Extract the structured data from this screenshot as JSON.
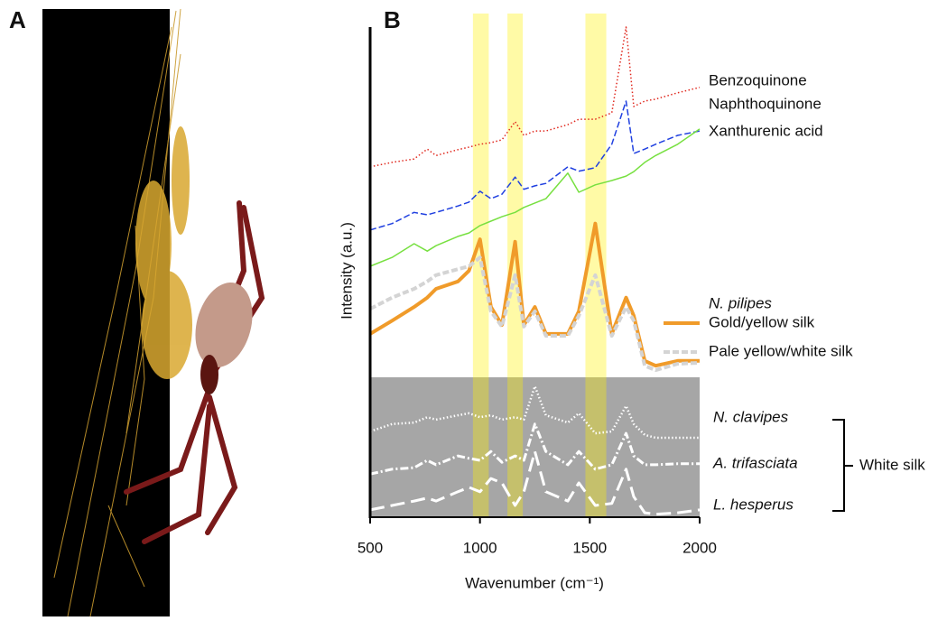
{
  "panel_a": {
    "label": "A"
  },
  "chart_data": {
    "type": "line",
    "label": "B",
    "xlabel": "Wavenumber (cm⁻¹)",
    "ylabel": "Intensity (a.u.)",
    "xlim": [
      500,
      2000
    ],
    "xticks": [
      500,
      1000,
      1500,
      2000
    ],
    "ylim": [
      0,
      100
    ],
    "highlight_bands": [
      [
        968,
        1040
      ],
      [
        1125,
        1195
      ],
      [
        1480,
        1575
      ]
    ],
    "legend_title": "N. pilipes",
    "bracket_label": "White silk",
    "x": [
      500,
      600,
      700,
      760,
      800,
      900,
      950,
      1000,
      1050,
      1100,
      1160,
      1200,
      1250,
      1300,
      1400,
      1450,
      1525,
      1600,
      1665,
      1700,
      1750,
      1800,
      1900,
      2000
    ],
    "series": [
      {
        "name": "Benzoquinone",
        "color": "#e0281e",
        "dash": "dotted",
        "values": [
          71.5,
          72.4,
          73.1,
          75.1,
          73.8,
          75.0,
          75.5,
          76.1,
          76.4,
          77.0,
          80.7,
          77.9,
          78.8,
          78.8,
          80.1,
          81.2,
          81.2,
          82.5,
          100,
          83.8,
          84.9,
          85.3,
          86.6,
          87.7
        ]
      },
      {
        "name": "Naphthoquinone",
        "color": "#2040e0",
        "dash": "dashed",
        "values": [
          58.6,
          59.9,
          62.2,
          61.7,
          62.2,
          63.5,
          64.3,
          66.5,
          65.0,
          65.9,
          69.4,
          66.9,
          67.6,
          68.1,
          71.5,
          70.6,
          71.3,
          76.1,
          84.9,
          74.2,
          75.1,
          76.1,
          77.9,
          78.8
        ]
      },
      {
        "name": "Xanthurenic acid",
        "color": "#77e040",
        "dash": "solid",
        "values": [
          51.2,
          53.0,
          55.8,
          54.3,
          55.4,
          57.3,
          58.0,
          59.5,
          60.4,
          61.3,
          62.2,
          63.2,
          64.1,
          65.0,
          70.2,
          66.3,
          67.8,
          68.7,
          69.6,
          70.5,
          72.4,
          73.8,
          76.1,
          79.2
        ]
      },
      {
        "name": "Gold/yellow silk",
        "color": "#f09b2a",
        "dash": "solid",
        "width": 4,
        "values": [
          37.4,
          40.1,
          42.9,
          44.8,
          46.6,
          48.1,
          50.3,
          56.7,
          42.9,
          39.2,
          56.2,
          39.2,
          42.9,
          37.4,
          37.4,
          42.0,
          59.9,
          37.4,
          44.8,
          41.1,
          31.9,
          30.9,
          31.9,
          31.9
        ]
      },
      {
        "name": "Pale yellow/white silk",
        "color": "#d4d4d4",
        "dash": "dashed",
        "width": 4,
        "values": [
          42.5,
          44.8,
          46.6,
          48.1,
          49.4,
          50.6,
          51.2,
          53.0,
          42.0,
          38.9,
          49.4,
          38.9,
          42.0,
          37.0,
          37.0,
          41.1,
          49.4,
          37.0,
          42.9,
          40.1,
          30.9,
          30.0,
          31.3,
          31.5
        ]
      },
      {
        "name": "N. clavipes",
        "color": "#ffffff",
        "dash": "dotted",
        "width": 2.5,
        "values": [
          17.5,
          19.0,
          19.3,
          20.4,
          19.9,
          20.8,
          21.2,
          20.4,
          20.8,
          19.9,
          20.4,
          19.9,
          26.7,
          20.8,
          19.3,
          21.2,
          17.1,
          17.5,
          22.7,
          19.0,
          16.8,
          16.2,
          16.2,
          16.2
        ]
      },
      {
        "name": "A. trifasciata",
        "color": "#ffffff",
        "dash": "dashdot",
        "width": 3,
        "values": [
          8.8,
          9.8,
          10.1,
          11.6,
          10.7,
          12.5,
          12.0,
          11.6,
          13.4,
          11.2,
          12.5,
          11.6,
          19.0,
          13.4,
          10.7,
          13.4,
          9.8,
          10.7,
          17.1,
          12.5,
          10.7,
          10.7,
          10.9,
          10.9
        ]
      },
      {
        "name": "L. hesperus",
        "color": "#ffffff",
        "dash": "longdash",
        "width": 3,
        "values": [
          1.5,
          2.4,
          3.3,
          3.9,
          3.3,
          5.2,
          6.1,
          5.2,
          7.9,
          7.0,
          2.4,
          5.2,
          13.4,
          5.2,
          3.3,
          7.0,
          2.4,
          2.8,
          9.8,
          4.2,
          0.9,
          0.6,
          0.9,
          1.5
        ]
      }
    ]
  }
}
